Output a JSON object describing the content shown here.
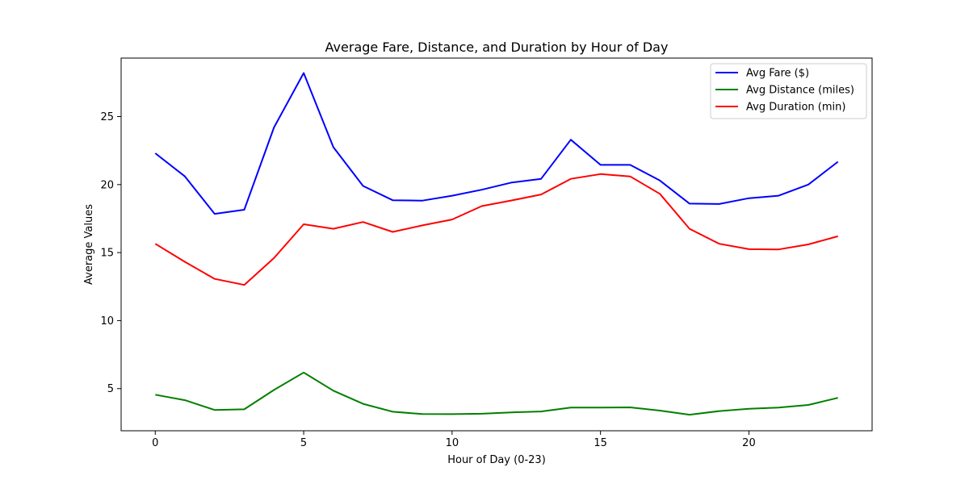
{
  "chart_data": {
    "type": "line",
    "title": "Average Fare, Distance, and Duration by Hour of Day",
    "xlabel": "Hour of Day (0-23)",
    "ylabel": "Average Values",
    "xlim": [
      -1.15,
      24.15
    ],
    "ylim": [
      1.9,
      29.3
    ],
    "xticks": [
      0,
      5,
      10,
      15,
      20
    ],
    "yticks": [
      5,
      10,
      15,
      20,
      25
    ],
    "grid": false,
    "legend_position": "top-right",
    "x": [
      0,
      1,
      2,
      3,
      4,
      5,
      6,
      7,
      8,
      9,
      10,
      11,
      12,
      13,
      14,
      15,
      16,
      17,
      18,
      19,
      20,
      21,
      22,
      23
    ],
    "series": [
      {
        "name": "Avg Fare ($)",
        "color": "#0000ff",
        "values": [
          22.3,
          20.6,
          17.85,
          18.15,
          24.2,
          28.2,
          22.75,
          19.9,
          18.85,
          18.82,
          19.18,
          19.62,
          20.15,
          20.42,
          23.3,
          21.45,
          21.45,
          20.3,
          18.6,
          18.57,
          19.0,
          19.18,
          20.0,
          21.68
        ]
      },
      {
        "name": "Avg Distance (miles)",
        "color": "#008000",
        "values": [
          4.55,
          4.15,
          3.43,
          3.48,
          4.9,
          6.18,
          4.85,
          3.88,
          3.3,
          3.13,
          3.12,
          3.15,
          3.25,
          3.32,
          3.6,
          3.6,
          3.62,
          3.38,
          3.08,
          3.35,
          3.52,
          3.6,
          3.8,
          4.32
        ]
      },
      {
        "name": "Avg Duration (min)",
        "color": "#ff0000",
        "values": [
          15.65,
          14.32,
          13.07,
          12.62,
          14.6,
          17.08,
          16.75,
          17.25,
          16.52,
          17.0,
          17.43,
          18.42,
          18.83,
          19.27,
          20.42,
          20.77,
          20.6,
          19.32,
          16.75,
          15.65,
          15.25,
          15.23,
          15.6,
          16.2
        ]
      }
    ]
  }
}
